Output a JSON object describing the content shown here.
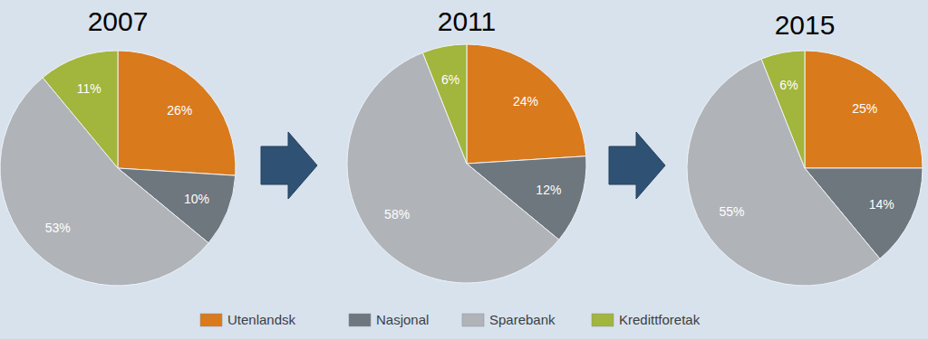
{
  "chart_data": {
    "type": "pie",
    "categories": [
      "Utenlandsk",
      "Nasjonal",
      "Sparebank",
      "Kredittforetak"
    ],
    "colors": [
      "#d97a1c",
      "#6e767e",
      "#b0b4b9",
      "#a2b53c"
    ],
    "data_labels": true,
    "series": [
      {
        "name": "2007",
        "values": [
          26,
          10,
          53,
          11
        ],
        "value_labels": [
          "26%",
          "10%",
          "53%",
          "11%"
        ]
      },
      {
        "name": "2011",
        "values": [
          24,
          12,
          58,
          6
        ],
        "value_labels": [
          "24%",
          "12%",
          "58%",
          "6%"
        ]
      },
      {
        "name": "2015",
        "values": [
          25,
          14,
          55,
          6
        ],
        "value_labels": [
          "25%",
          "14%",
          "55%",
          "6%"
        ]
      }
    ]
  }
}
